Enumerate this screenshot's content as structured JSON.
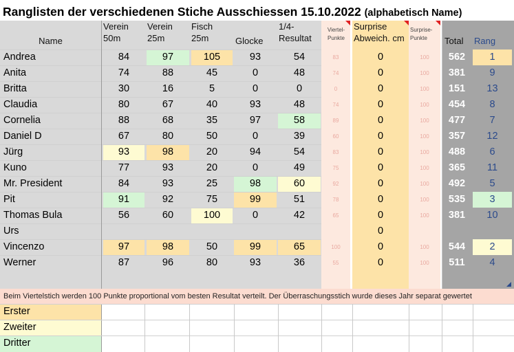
{
  "title": "Ranglisten der verschiedenen Stiche Ausschiessen 15.10.2022",
  "subtitle": "(alphabetisch Name)",
  "headers": {
    "name": "Name",
    "verein50_l1": "Verein",
    "verein50_l2": "50m",
    "verein25_l1": "Verein",
    "verein25_l2": "25m",
    "fisch_l1": "Fisch",
    "fisch_l2": "25m",
    "glocke": "Glocke",
    "viertel_l1": "1/4-",
    "viertel_l2": "Resultat",
    "vpunkte_l1": "Viertel-",
    "vpunkte_l2": "Punkte",
    "surprise_l1": "Surprise",
    "surprise_l2": "Abweich. cm",
    "spunkte_l1": "Surprise-",
    "spunkte_l2": "Punkte",
    "total": "Total",
    "rang": "Rang"
  },
  "rows": [
    {
      "name": "Andrea",
      "v50": "84",
      "v25": "97",
      "fisch": "105",
      "glocke": "93",
      "viertel": "54",
      "vp": "83",
      "sur": "0",
      "sp": "100",
      "total": "562",
      "rang": "1"
    },
    {
      "name": "Anita",
      "v50": "74",
      "v25": "88",
      "fisch": "45",
      "glocke": "0",
      "viertel": "48",
      "vp": "74",
      "sur": "0",
      "sp": "100",
      "total": "381",
      "rang": "9"
    },
    {
      "name": "Britta",
      "v50": "30",
      "v25": "16",
      "fisch": "5",
      "glocke": "0",
      "viertel": "0",
      "vp": "0",
      "sur": "0",
      "sp": "100",
      "total": "151",
      "rang": "13"
    },
    {
      "name": "Claudia",
      "v50": "80",
      "v25": "67",
      "fisch": "40",
      "glocke": "93",
      "viertel": "48",
      "vp": "74",
      "sur": "0",
      "sp": "100",
      "total": "454",
      "rang": "8"
    },
    {
      "name": "Cornelia",
      "v50": "88",
      "v25": "68",
      "fisch": "35",
      "glocke": "97",
      "viertel": "58",
      "vp": "89",
      "sur": "0",
      "sp": "100",
      "total": "477",
      "rang": "7"
    },
    {
      "name": "Daniel D",
      "v50": "67",
      "v25": "80",
      "fisch": "50",
      "glocke": "0",
      "viertel": "39",
      "vp": "60",
      "sur": "0",
      "sp": "100",
      "total": "357",
      "rang": "12"
    },
    {
      "name": "Jürg",
      "v50": "93",
      "v25": "98",
      "fisch": "20",
      "glocke": "94",
      "viertel": "54",
      "vp": "83",
      "sur": "0",
      "sp": "100",
      "total": "488",
      "rang": "6"
    },
    {
      "name": "Kuno",
      "v50": "77",
      "v25": "93",
      "fisch": "20",
      "glocke": "0",
      "viertel": "49",
      "vp": "75",
      "sur": "0",
      "sp": "100",
      "total": "365",
      "rang": "11"
    },
    {
      "name": "Mr. President",
      "v50": "84",
      "v25": "93",
      "fisch": "25",
      "glocke": "98",
      "viertel": "60",
      "vp": "92",
      "sur": "0",
      "sp": "100",
      "total": "492",
      "rang": "5"
    },
    {
      "name": "Pit",
      "v50": "91",
      "v25": "92",
      "fisch": "75",
      "glocke": "99",
      "viertel": "51",
      "vp": "78",
      "sur": "0",
      "sp": "100",
      "total": "535",
      "rang": "3"
    },
    {
      "name": "Thomas Bula",
      "v50": "56",
      "v25": "60",
      "fisch": "100",
      "glocke": "0",
      "viertel": "42",
      "vp": "65",
      "sur": "0",
      "sp": "100",
      "total": "381",
      "rang": "10"
    },
    {
      "name": "Urs",
      "v50": "",
      "v25": "",
      "fisch": "",
      "glocke": "",
      "viertel": "",
      "vp": "",
      "sur": "0",
      "sp": "",
      "total": "",
      "rang": ""
    },
    {
      "name": "Vincenzo",
      "v50": "97",
      "v25": "98",
      "fisch": "50",
      "glocke": "99",
      "viertel": "65",
      "vp": "100",
      "sur": "0",
      "sp": "100",
      "total": "544",
      "rang": "2"
    },
    {
      "name": "Werner",
      "v50": "87",
      "v25": "96",
      "fisch": "80",
      "glocke": "93",
      "viertel": "36",
      "vp": "55",
      "sur": "0",
      "sp": "100",
      "total": "511",
      "rang": "4"
    }
  ],
  "note": "Beim Viertelstich werden 100 Punkte proportional vom besten Resultat verteilt. Der Überraschungsstich wurde dieses Jahr separat gewertet",
  "legend": {
    "first": "Erster",
    "second": "Zweiter",
    "third": "Dritter"
  },
  "colors": {
    "first": "#fde3a8",
    "second": "#fefbd2",
    "third": "#d5f5d5",
    "total_bg": "#a5a5a5",
    "surprise_bg": "#fde3a8",
    "punkte_bg": "#fde9df",
    "note_bg": "#fcdcd0"
  }
}
